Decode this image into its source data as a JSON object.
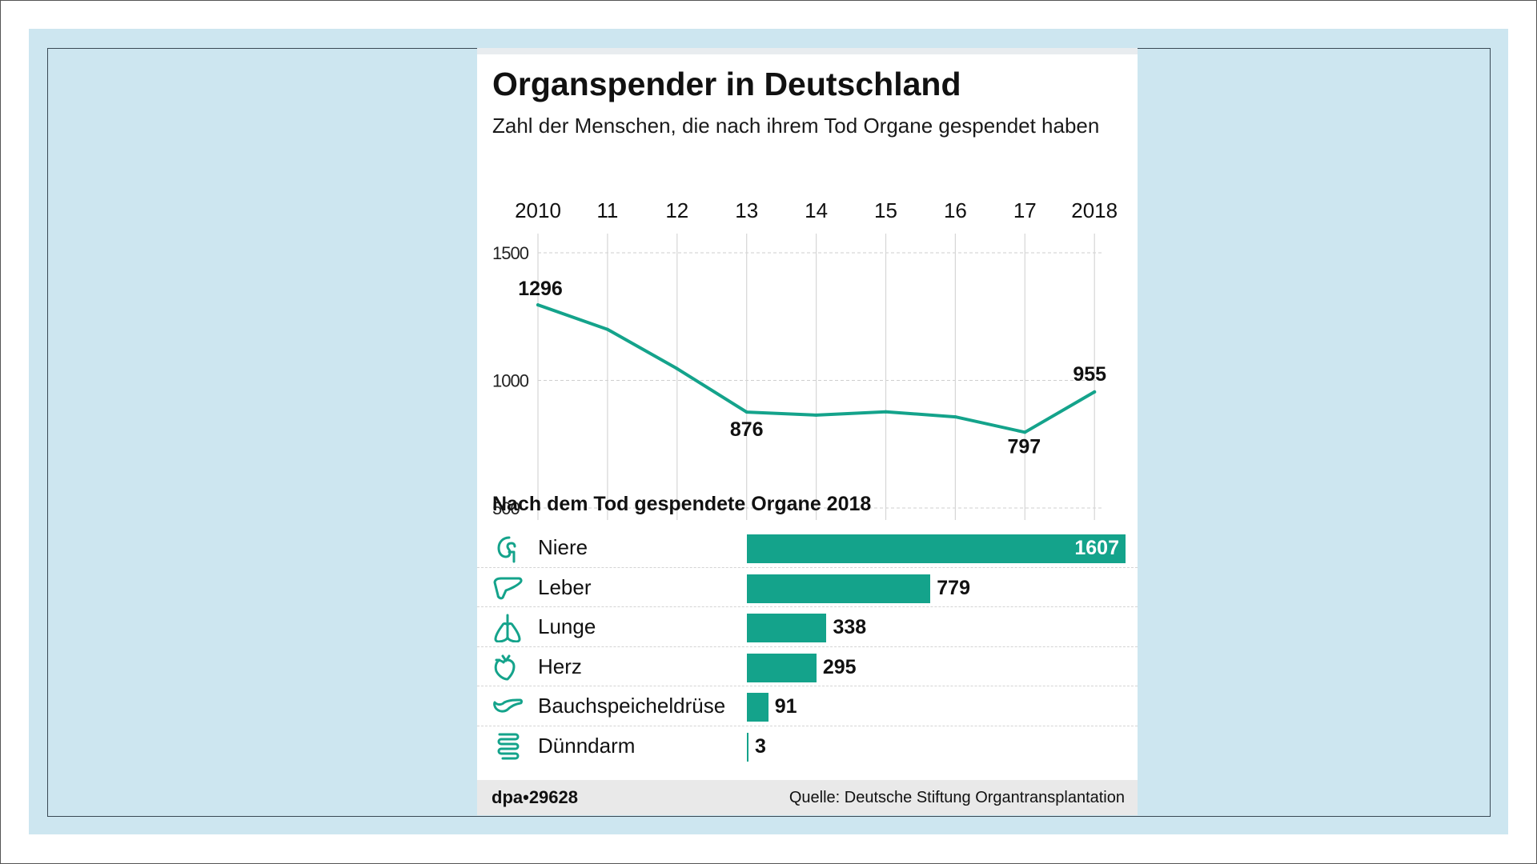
{
  "colors": {
    "accent": "#14a38b",
    "background": "#cde6f0",
    "grid": "#cfcfcf"
  },
  "chart_data": [
    {
      "type": "line",
      "title": "Organspender in Deutschland",
      "subtitle": "Zahl der Menschen, die nach ihrem Tod Organe gespendet haben",
      "x": [
        2010,
        2011,
        2012,
        2013,
        2014,
        2015,
        2016,
        2017,
        2018
      ],
      "x_tick_labels": [
        "2010",
        "11",
        "12",
        "13",
        "14",
        "15",
        "16",
        "17",
        "2018"
      ],
      "series": [
        {
          "values": [
            1296,
            1200,
            1046,
            876,
            864,
            877,
            857,
            797,
            955
          ]
        }
      ],
      "data_labels": [
        {
          "x": 2010,
          "text": "1296"
        },
        {
          "x": 2013,
          "text": "876"
        },
        {
          "x": 2017,
          "text": "797"
        },
        {
          "x": 2018,
          "text": "955"
        }
      ],
      "y_ticks": [
        {
          "value": 1500,
          "label": "1500"
        },
        {
          "value": 1000,
          "label": "1000"
        },
        {
          "value": 500,
          "label": "500"
        }
      ],
      "ylim": [
        500,
        1500
      ],
      "grid": true
    },
    {
      "type": "bar",
      "orientation": "horizontal",
      "title": "Nach dem Tod gespendete Organe 2018",
      "categories": [
        "Niere",
        "Leber",
        "Lunge",
        "Herz",
        "Bauchspeicheldrüse",
        "Dünndarm"
      ],
      "values": [
        1607,
        779,
        338,
        295,
        91,
        3
      ],
      "icons": [
        "kidney-icon",
        "liver-icon",
        "lungs-icon",
        "heart-icon",
        "pancreas-icon",
        "intestine-icon"
      ]
    }
  ],
  "footer": {
    "brand": "dpa•29628",
    "source": "Quelle: Deutsche Stiftung Organtransplantation"
  }
}
